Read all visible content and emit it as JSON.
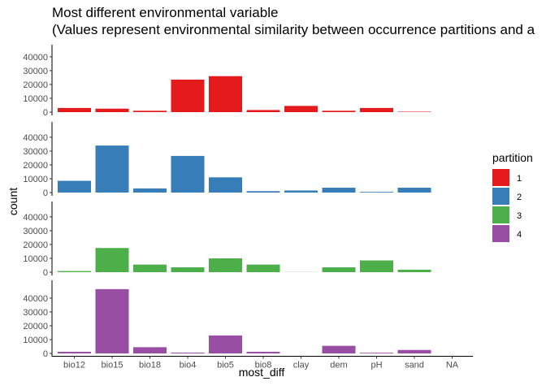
{
  "chart_data": {
    "type": "bar",
    "title_line1": "Most different environmental variable",
    "title_line2": "(Values represent environmental similarity between occurrence partitions and a",
    "xlabel": "most_diff",
    "ylabel": "count",
    "categories": [
      "bio12",
      "bio15",
      "bio18",
      "bio4",
      "bio5",
      "bio8",
      "clay",
      "dem",
      "pH",
      "sand",
      "NA"
    ],
    "ylim": [
      0,
      47000
    ],
    "yticks": [
      0,
      10000,
      20000,
      30000,
      40000
    ],
    "legend_title": "partition",
    "legend_position": "right",
    "grid": false,
    "series": [
      {
        "name": "1",
        "color": "#E41A1C",
        "values": [
          3000,
          2500,
          1000,
          23500,
          26000,
          1500,
          4500,
          1000,
          3000,
          300,
          0
        ]
      },
      {
        "name": "2",
        "color": "#377EB8",
        "values": [
          8500,
          34000,
          3000,
          26500,
          11000,
          1000,
          1500,
          3500,
          500,
          3500,
          0
        ]
      },
      {
        "name": "3",
        "color": "#4DAF4A",
        "values": [
          800,
          17500,
          5500,
          3500,
          10000,
          5500,
          100,
          3500,
          8500,
          1800,
          0
        ]
      },
      {
        "name": "4",
        "color": "#984EA3",
        "values": [
          1200,
          46500,
          4500,
          600,
          13000,
          1200,
          0,
          5500,
          500,
          2500,
          0
        ]
      }
    ]
  }
}
